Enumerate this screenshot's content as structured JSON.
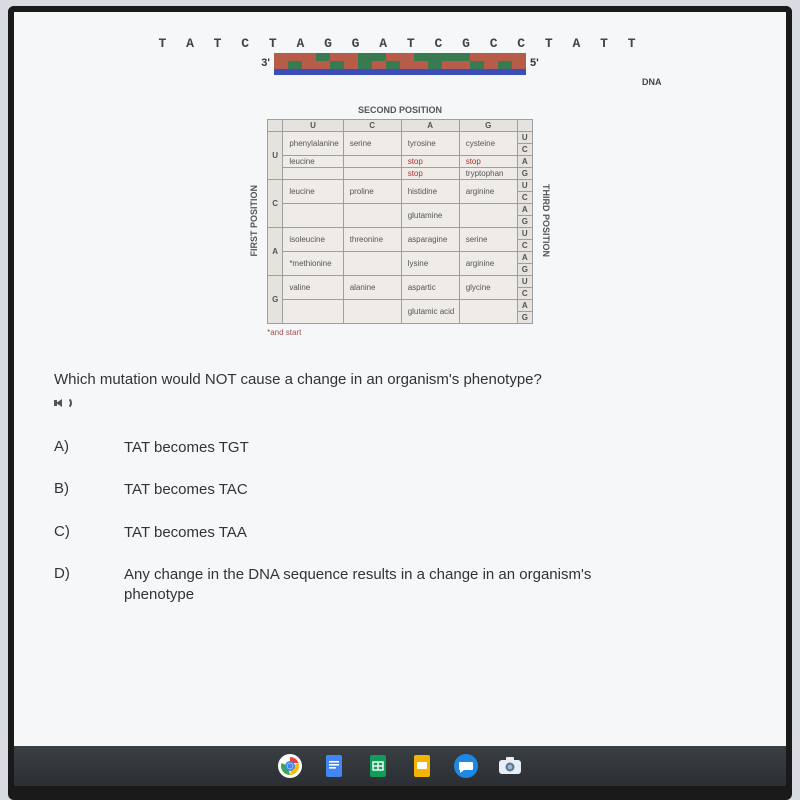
{
  "dna": {
    "sequence": "T A T C T A G G A T C G C C T A T T",
    "ticks": [
      {
        "t": "#b85c4a",
        "b": "#b85c4a"
      },
      {
        "t": "#b85c4a",
        "b": "#3a7a50"
      },
      {
        "t": "#b85c4a",
        "b": "#b85c4a"
      },
      {
        "t": "#3a7a50",
        "b": "#b85c4a"
      },
      {
        "t": "#b85c4a",
        "b": "#3a7a50"
      },
      {
        "t": "#b85c4a",
        "b": "#b85c4a"
      },
      {
        "t": "#3a7a50",
        "b": "#3a7a50"
      },
      {
        "t": "#3a7a50",
        "b": "#b85c4a"
      },
      {
        "t": "#b85c4a",
        "b": "#3a7a50"
      },
      {
        "t": "#b85c4a",
        "b": "#b85c4a"
      },
      {
        "t": "#3a7a50",
        "b": "#b85c4a"
      },
      {
        "t": "#3a7a50",
        "b": "#3a7a50"
      },
      {
        "t": "#3a7a50",
        "b": "#b85c4a"
      },
      {
        "t": "#3a7a50",
        "b": "#b85c4a"
      },
      {
        "t": "#b85c4a",
        "b": "#3a7a50"
      },
      {
        "t": "#b85c4a",
        "b": "#b85c4a"
      },
      {
        "t": "#b85c4a",
        "b": "#3a7a50"
      },
      {
        "t": "#b85c4a",
        "b": "#b85c4a"
      }
    ],
    "left_prime": "3'",
    "right_prime": "5'",
    "bottom_bar_color": "#3a4db8",
    "label": "DNA"
  },
  "codon_table": {
    "top_label": "SECOND POSITION",
    "left_label": "FIRST POSITION",
    "right_label": "THIRD POSITION",
    "col_headers": [
      "U",
      "C",
      "A",
      "G"
    ],
    "row_headers": [
      "U",
      "C",
      "A",
      "G"
    ],
    "third_col": [
      "U",
      "C",
      "A",
      "G",
      "U",
      "C",
      "A",
      "G",
      "U",
      "C",
      "A",
      "G",
      "U",
      "C",
      "A",
      "G"
    ],
    "cells": {
      "U": [
        {
          "U": "phenylalanine",
          "C": "serine",
          "A": "tyrosine",
          "G": "cysteine",
          "rs": 2
        },
        {
          "U": "leucine",
          "C": "",
          "A": "stop",
          "G": "stop",
          "rs": 1,
          "a_red": true,
          "g_red": true
        },
        {
          "U": "",
          "C": "",
          "A": "stop",
          "G": "tryptophan",
          "rs": 1,
          "a_red": true
        }
      ],
      "C": [
        {
          "U": "leucine",
          "C": "proline",
          "A": "histidine",
          "G": "arginine",
          "rs": 2
        },
        {
          "U": "",
          "C": "",
          "A": "glutamine",
          "G": "",
          "rs": 2
        }
      ],
      "A": [
        {
          "U": "isoleucine",
          "C": "threonine",
          "A": "asparagine",
          "G": "serine",
          "rs": 2
        },
        {
          "U": "*methionine",
          "C": "",
          "A": "lysine",
          "G": "arginine",
          "rs": 2
        }
      ],
      "G": [
        {
          "U": "valine",
          "C": "alanine",
          "A": "aspartic",
          "G": "glycine",
          "rs": 2
        },
        {
          "U": "",
          "C": "",
          "A": "glutamic acid",
          "G": "",
          "rs": 2
        }
      ]
    },
    "footnote": "*and start"
  },
  "question": "Which mutation would NOT cause a change in an organism's phenotype?",
  "answers": [
    {
      "letter": "A)",
      "text": "TAT becomes TGT"
    },
    {
      "letter": "B)",
      "text": "TAT becomes TAC"
    },
    {
      "letter": "C)",
      "text": "TAT becomes TAA"
    },
    {
      "letter": "D)",
      "text": "Any change in the DNA sequence results in a change in an organism's phenotype"
    }
  ],
  "taskbar": {
    "chrome": {
      "bg": "#ffffff",
      "ring": [
        "#ea4335",
        "#fbbc05",
        "#34a853",
        "#4285f4"
      ]
    },
    "docs": {
      "bg": "#4285f4"
    },
    "sheets": {
      "bg": "#0f9d58"
    },
    "slides": {
      "bg": "#f4b400"
    },
    "messages": {
      "bg": "#1e88e5"
    },
    "camera": {
      "bg": "#ffffff"
    }
  }
}
